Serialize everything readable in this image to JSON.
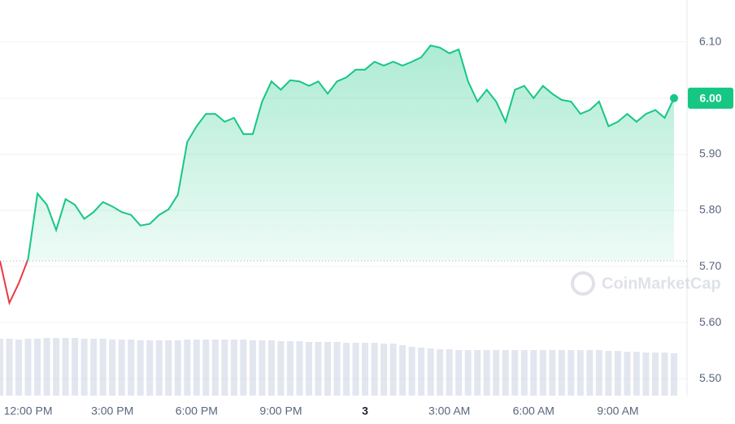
{
  "chart_data": {
    "type": "line",
    "categories": [
      null,
      null,
      null,
      "12:00 PM",
      null,
      null,
      null,
      null,
      null,
      null,
      null,
      null,
      "3:00 PM",
      null,
      null,
      null,
      null,
      null,
      null,
      null,
      null,
      "6:00 PM",
      null,
      null,
      null,
      null,
      null,
      null,
      null,
      null,
      "9:00 PM",
      null,
      null,
      null,
      null,
      null,
      null,
      null,
      null,
      "3",
      null,
      null,
      null,
      null,
      null,
      null,
      null,
      null,
      "3:00 AM",
      null,
      null,
      null,
      null,
      null,
      null,
      null,
      null,
      "6:00 AM",
      null,
      null,
      null,
      null,
      null,
      null,
      null,
      null,
      "9:00 AM",
      null,
      null,
      null,
      null,
      null,
      null
    ],
    "values": [
      5.71,
      5.635,
      5.67,
      5.713,
      5.83,
      5.81,
      5.765,
      5.82,
      5.81,
      5.785,
      5.797,
      5.815,
      5.807,
      5.797,
      5.792,
      5.773,
      5.776,
      5.792,
      5.802,
      5.828,
      5.922,
      5.95,
      5.972,
      5.972,
      5.958,
      5.965,
      5.936,
      5.936,
      5.994,
      6.03,
      6.015,
      6.032,
      6.03,
      6.022,
      6.03,
      6.008,
      6.03,
      6.037,
      6.051,
      6.051,
      6.065,
      6.058,
      6.065,
      6.058,
      6.065,
      6.073,
      6.094,
      6.09,
      6.08,
      6.087,
      6.03,
      5.994,
      6.015,
      5.994,
      5.958,
      6.015,
      6.022,
      6.0,
      6.022,
      6.008,
      5.997,
      5.994,
      5.972,
      5.979,
      5.994,
      5.95,
      5.958,
      5.972,
      5.958,
      5.972,
      5.979,
      5.965,
      6.0
    ],
    "volume": [
      70,
      70,
      69,
      70,
      70,
      71,
      71,
      71,
      71,
      70,
      70,
      70,
      69,
      69,
      69,
      68,
      68,
      68,
      68,
      68,
      69,
      69,
      69,
      69,
      69,
      69,
      69,
      68,
      68,
      68,
      67,
      67,
      67,
      66,
      66,
      66,
      66,
      65,
      65,
      65,
      65,
      64,
      64,
      62,
      60,
      59,
      58,
      57,
      57,
      56,
      56,
      56,
      56,
      56,
      56,
      56,
      56,
      56,
      56,
      56,
      56,
      56,
      56,
      56,
      56,
      55,
      55,
      54,
      54,
      53,
      53,
      53,
      52
    ],
    "volume_lim": [
      0,
      100
    ],
    "baseline": 5.71,
    "ylim": [
      5.47,
      6.175
    ],
    "yticks": [
      {
        "value": 5.5,
        "label": "5.50"
      },
      {
        "value": 5.6,
        "label": "5.60"
      },
      {
        "value": 5.7,
        "label": "5.70"
      },
      {
        "value": 5.8,
        "label": "5.80"
      },
      {
        "value": 5.9,
        "label": "5.90"
      },
      {
        "value": 6.0,
        "label": "6.00"
      },
      {
        "value": 6.1,
        "label": "6.10"
      }
    ],
    "price_tag": {
      "value": 6.0,
      "label": "6.00"
    },
    "up_color": "#16c784",
    "down_color": "#ea3943",
    "volume_color": "#cfd6e4",
    "grid": true,
    "watermark": "CoinMarketCap"
  }
}
